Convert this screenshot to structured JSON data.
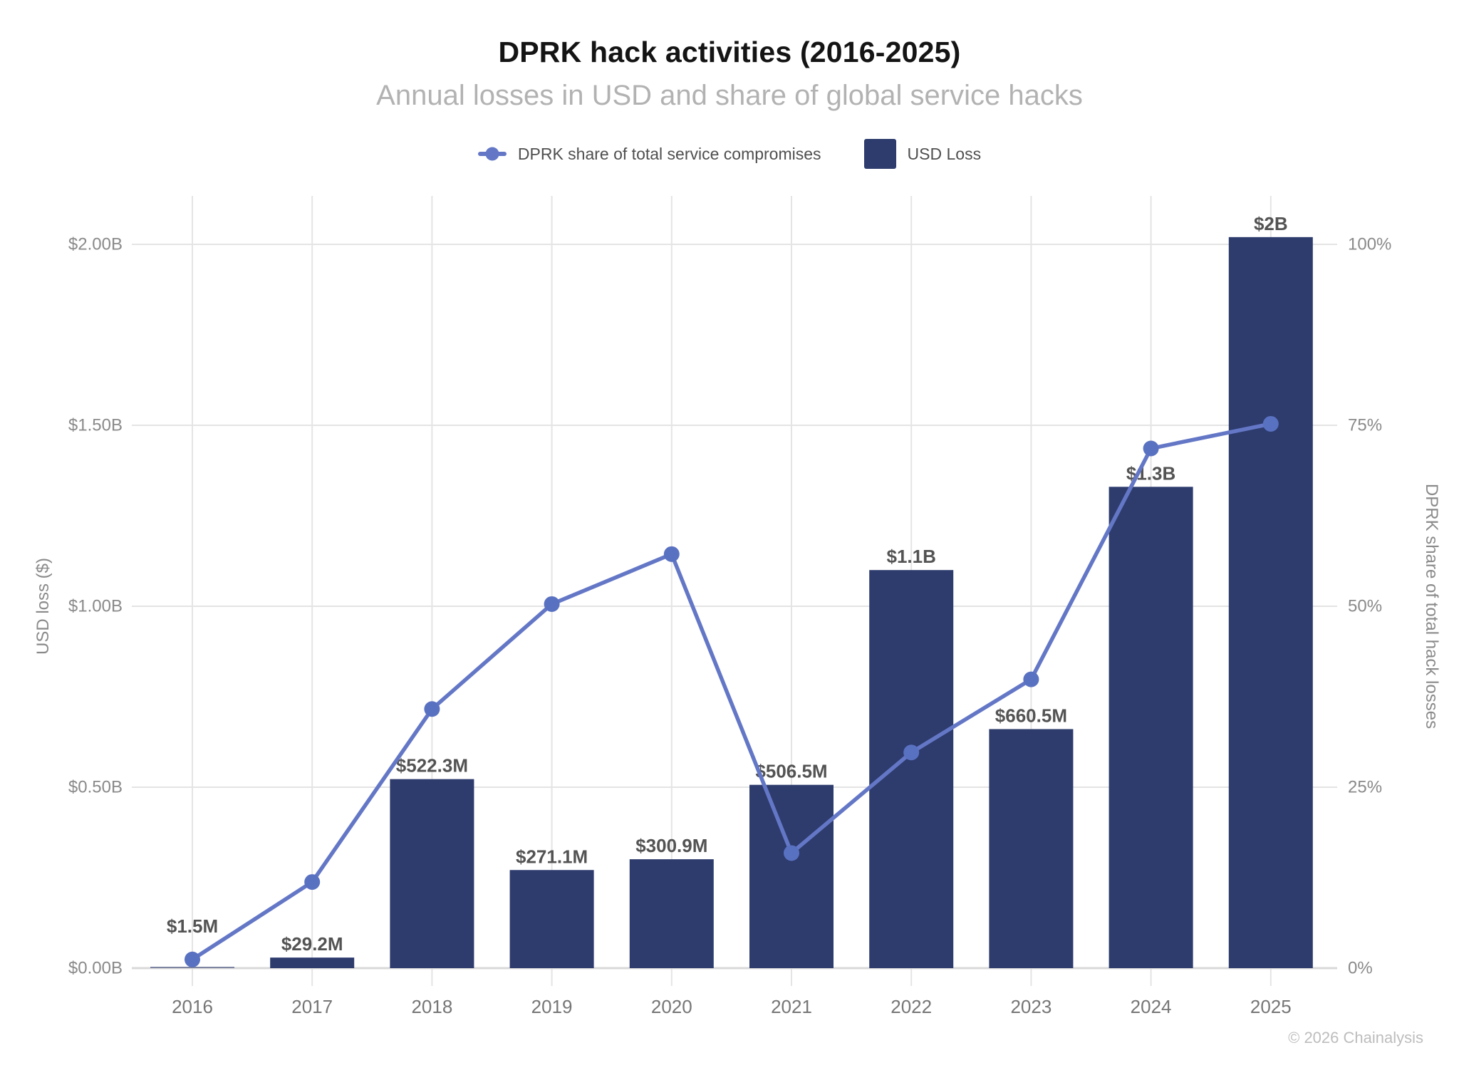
{
  "header": {
    "title": "DPRK hack activities (2016-2025)",
    "subtitle": "Annual losses in USD and share of global service hacks"
  },
  "legend": {
    "share_label": "DPRK share of total service compromises",
    "usd_label": "USD Loss"
  },
  "footer": {
    "copyright": "© 2026 Chainalysis"
  },
  "colors": {
    "bar": "#2d3b6d",
    "line": "#6377c6",
    "marker": "#5971c1",
    "grid": "#e4e4e4",
    "baseline": "#d8d8d8",
    "title": "#141414",
    "subtitle": "#b2b2b2",
    "legend_text": "#4f4f4f",
    "bar_label": "#535353",
    "tick_label": "#8a8a8a",
    "year_label": "#767676",
    "axis_title": "#8a8a8a",
    "copyright": "#bdbdbd"
  },
  "chart_data": {
    "type": "bar+line (combo, dual axis)",
    "categories": [
      "2016",
      "2017",
      "2018",
      "2019",
      "2020",
      "2021",
      "2022",
      "2023",
      "2024",
      "2025"
    ],
    "series": [
      {
        "name": "USD Loss",
        "type": "bar",
        "axis": "left",
        "values_usd_billions": [
          0.0015,
          0.0292,
          0.5223,
          0.2711,
          0.3009,
          0.5065,
          1.1,
          0.6605,
          1.33,
          2.02
        ],
        "data_labels": [
          "$1.5M",
          "$29.2M",
          "$522.3M",
          "$271.1M",
          "$300.9M",
          "$506.5M",
          "$1.1B",
          "$660.5M",
          "$1.3B",
          "$2B"
        ]
      },
      {
        "name": "DPRK share of total service compromises",
        "type": "line",
        "axis": "right",
        "values_pct": [
          1.2,
          11.9,
          35.8,
          50.3,
          57.2,
          15.9,
          29.8,
          39.9,
          71.8,
          75.2
        ]
      }
    ],
    "left_axis": {
      "title": "USD loss ($)",
      "ticks": [
        "$2.00B",
        "$1.50B",
        "$1.00B",
        "$0.50B",
        "$0.00B"
      ],
      "range_billions": [
        0,
        2
      ]
    },
    "right_axis": {
      "title": "DPRK share of total hack losses",
      "ticks": [
        "100%",
        "75%",
        "50%",
        "25%",
        "0%"
      ],
      "range_pct": [
        0,
        100
      ]
    },
    "grid": true,
    "legend_position": "top"
  }
}
